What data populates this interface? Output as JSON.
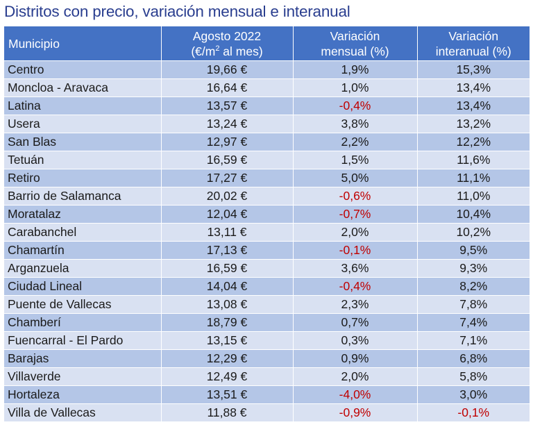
{
  "title": "Distritos con precio, variación mensual e interanual",
  "colors": {
    "header_bg": "#4472c4",
    "row_odd": "#b4c6e7",
    "row_even": "#d9e1f2",
    "negative": "#c00000",
    "title": "#2a3e8f"
  },
  "header": {
    "municipio": "Municipio",
    "agosto_line1": "Agosto 2022",
    "agosto_line2_pre": "(€/m",
    "agosto_line2_sup": "2",
    "agosto_line2_post": " al mes)",
    "mensual_line1": "Variación",
    "mensual_line2": "mensual (%)",
    "interanual_line1": "Variación",
    "interanual_line2": "interanual (%)"
  },
  "rows": [
    {
      "municipio": "Centro",
      "precio": "19,66 €",
      "mensual": "1,9%",
      "interanual": "15,3%"
    },
    {
      "municipio": "Moncloa - Aravaca",
      "precio": "16,64 €",
      "mensual": "1,0%",
      "interanual": "13,4%"
    },
    {
      "municipio": "Latina",
      "precio": "13,57 €",
      "mensual": "-0,4%",
      "interanual": "13,4%"
    },
    {
      "municipio": "Usera",
      "precio": "13,24 €",
      "mensual": "3,8%",
      "interanual": "13,2%"
    },
    {
      "municipio": "San Blas",
      "precio": "12,97 €",
      "mensual": "2,2%",
      "interanual": "12,2%"
    },
    {
      "municipio": "Tetuán",
      "precio": "16,59 €",
      "mensual": "1,5%",
      "interanual": "11,6%"
    },
    {
      "municipio": "Retiro",
      "precio": "17,27 €",
      "mensual": "5,0%",
      "interanual": "11,1%"
    },
    {
      "municipio": "Barrio de Salamanca",
      "precio": "20,02 €",
      "mensual": "-0,6%",
      "interanual": "11,0%"
    },
    {
      "municipio": "Moratalaz",
      "precio": "12,04 €",
      "mensual": "-0,7%",
      "interanual": "10,4%"
    },
    {
      "municipio": "Carabanchel",
      "precio": "13,11 €",
      "mensual": "2,0%",
      "interanual": "10,2%"
    },
    {
      "municipio": "Chamartín",
      "precio": "17,13 €",
      "mensual": "-0,1%",
      "interanual": "9,5%"
    },
    {
      "municipio": "Arganzuela",
      "precio": "16,59 €",
      "mensual": "3,6%",
      "interanual": "9,3%"
    },
    {
      "municipio": "Ciudad Lineal",
      "precio": "14,04 €",
      "mensual": "-0,4%",
      "interanual": "8,2%"
    },
    {
      "municipio": "Puente de Vallecas",
      "precio": "13,08 €",
      "mensual": "2,3%",
      "interanual": "7,8%"
    },
    {
      "municipio": "Chamberí",
      "precio": "18,79 €",
      "mensual": "0,7%",
      "interanual": "7,4%"
    },
    {
      "municipio": "Fuencarral - El Pardo",
      "precio": "13,15 €",
      "mensual": "0,3%",
      "interanual": "7,1%"
    },
    {
      "municipio": "Barajas",
      "precio": "12,29 €",
      "mensual": "0,9%",
      "interanual": "6,8%"
    },
    {
      "municipio": "Villaverde",
      "precio": "12,49 €",
      "mensual": "2,0%",
      "interanual": "5,8%"
    },
    {
      "municipio": "Hortaleza",
      "precio": "13,51 €",
      "mensual": "-4,0%",
      "interanual": "3,0%"
    },
    {
      "municipio": "Villa de Vallecas",
      "precio": "11,88 €",
      "mensual": "-0,9%",
      "interanual": "-0,1%"
    }
  ]
}
